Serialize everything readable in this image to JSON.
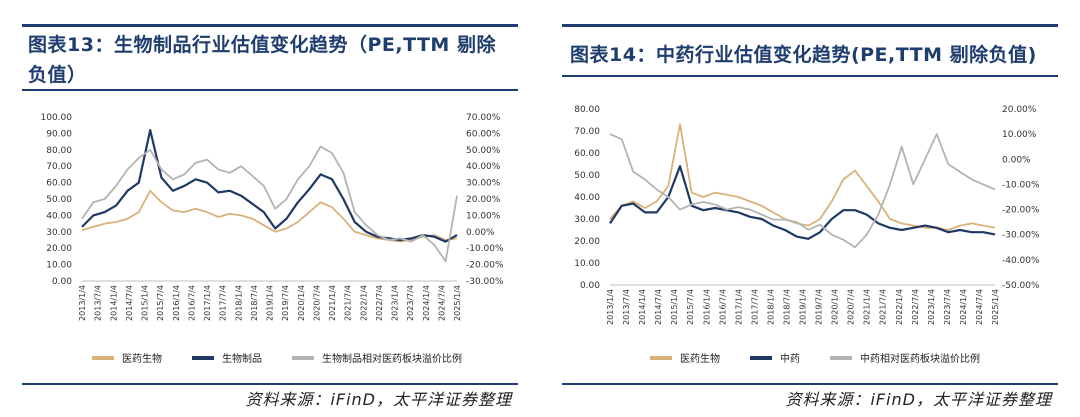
{
  "figures": [
    {
      "title": "图表13：生物制品行业估值变化趋势（PE,TTM 剔除负值）",
      "source": "资料来源：iFinD，太平洋证券整理"
    },
    {
      "title": "图表14：中药行业估值变化趋势(PE,TTM 剔除负值)",
      "source": "资料来源：iFinD，太平洋证券整理"
    }
  ],
  "chart_data": [
    {
      "type": "line",
      "title": "",
      "ylim": [
        0,
        100
      ],
      "y_ticks": [
        "0.00",
        "10.00",
        "20.00",
        "30.00",
        "40.00",
        "50.00",
        "60.00",
        "70.00",
        "80.00",
        "90.00",
        "100.00"
      ],
      "y2lim": [
        -30,
        70
      ],
      "y2_ticks": [
        "-30.00%",
        "-20.00%",
        "-10.00%",
        "0.00%",
        "10.00%",
        "20.00%",
        "30.00%",
        "40.00%",
        "50.00%",
        "60.00%",
        "70.00%"
      ],
      "x_tick_labels": [
        "2013/1/4",
        "2013/7/4",
        "2014/1/4",
        "2014/7/4",
        "2015/1/4",
        "2015/7/4",
        "2016/1/4",
        "2016/7/4",
        "2017/1/4",
        "2017/7/4",
        "2018/1/4",
        "2018/7/4",
        "2019/1/4",
        "2019/7/4",
        "2020/1/4",
        "2020/7/4",
        "2021/1/4",
        "2021/7/4",
        "2022/1/4",
        "2022/7/4",
        "2023/1/4",
        "2023/7/4",
        "2024/1/4",
        "2024/7/4",
        "2025/1/4"
      ],
      "series": [
        {
          "name": "医药生物",
          "color": "#d9b27a",
          "axis": "left",
          "values": [
            31,
            33,
            35,
            36,
            38,
            42,
            55,
            48,
            43,
            42,
            44,
            42,
            39,
            41,
            40,
            38,
            34,
            30,
            32,
            36,
            42,
            48,
            45,
            38,
            30,
            28,
            26,
            25,
            24,
            25,
            27,
            28,
            25,
            26
          ]
        },
        {
          "name": "生物制品",
          "color": "#1f3864",
          "axis": "left",
          "values": [
            33,
            40,
            42,
            46,
            55,
            60,
            92,
            63,
            55,
            58,
            62,
            60,
            54,
            55,
            52,
            47,
            42,
            32,
            38,
            48,
            56,
            65,
            62,
            50,
            36,
            30,
            27,
            26,
            25,
            26,
            28,
            27,
            24,
            28
          ]
        },
        {
          "name": "生物制品相对医药板块溢价比例",
          "color": "#b3b3b3",
          "axis": "right",
          "values": [
            8,
            18,
            20,
            28,
            38,
            45,
            50,
            38,
            32,
            35,
            42,
            44,
            38,
            36,
            40,
            34,
            28,
            14,
            20,
            32,
            40,
            52,
            48,
            36,
            12,
            4,
            -2,
            -5,
            -4,
            -6,
            -2,
            -8,
            -18,
            22
          ]
        }
      ]
    },
    {
      "type": "line",
      "title": "",
      "ylim": [
        0,
        80
      ],
      "y_ticks": [
        "0.00",
        "10.00",
        "20.00",
        "30.00",
        "40.00",
        "50.00",
        "60.00",
        "70.00",
        "80.00"
      ],
      "y2lim": [
        -50,
        20
      ],
      "y2_ticks": [
        "-50.00%",
        "-40.00%",
        "-30.00%",
        "-20.00%",
        "-10.00%",
        "0.00%",
        "10.00%",
        "20.00%"
      ],
      "x_tick_labels": [
        "2013/1/4",
        "2013/7/4",
        "2014/1/4",
        "2014/7/4",
        "2015/1/4",
        "2015/7/4",
        "2016/1/4",
        "2016/7/4",
        "2017/1/4",
        "2017/7/4",
        "2018/1/4",
        "2018/7/4",
        "2019/1/4",
        "2019/7/4",
        "2020/1/4",
        "2020/7/4",
        "2021/1/4",
        "2021/7/4",
        "2022/1/4",
        "2022/7/4",
        "2023/1/4",
        "2023/7/4",
        "2024/1/4",
        "2024/7/4",
        "2025/1/4"
      ],
      "series": [
        {
          "name": "医药生物",
          "color": "#d9b27a",
          "axis": "left",
          "values": [
            30,
            36,
            38,
            35,
            38,
            45,
            73,
            42,
            40,
            42,
            41,
            40,
            38,
            36,
            33,
            30,
            28,
            27,
            30,
            38,
            48,
            52,
            45,
            38,
            30,
            28,
            27,
            26,
            26,
            25,
            27,
            28,
            27,
            26
          ]
        },
        {
          "name": "中药",
          "color": "#1f3864",
          "axis": "left",
          "values": [
            28,
            36,
            37,
            33,
            33,
            40,
            54,
            36,
            34,
            35,
            34,
            33,
            31,
            30,
            27,
            25,
            22,
            21,
            24,
            30,
            34,
            34,
            32,
            28,
            26,
            25,
            26,
            27,
            26,
            24,
            25,
            24,
            24,
            23
          ]
        },
        {
          "name": "中药相对医药板块溢价比例",
          "color": "#b3b3b3",
          "axis": "right",
          "values": [
            10,
            8,
            -5,
            -8,
            -12,
            -15,
            -20,
            -18,
            -17,
            -18,
            -20,
            -19,
            -20,
            -22,
            -24,
            -24,
            -25,
            -28,
            -26,
            -30,
            -32,
            -35,
            -30,
            -22,
            -10,
            5,
            -10,
            0,
            10,
            -2,
            -5,
            -8,
            -10,
            -12
          ]
        }
      ]
    }
  ]
}
